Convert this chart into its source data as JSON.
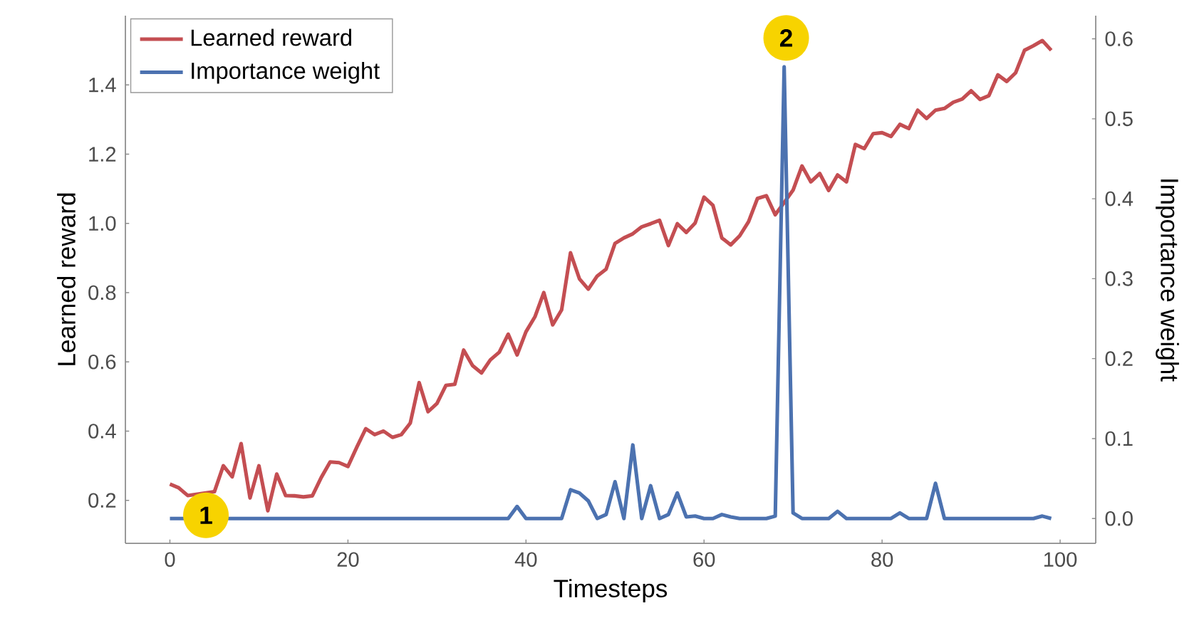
{
  "chart_data": {
    "type": "line",
    "xlabel": "Timesteps",
    "ylabel": "Learned reward",
    "y2label": "Importance weight",
    "x": [
      0,
      1,
      2,
      3,
      4,
      5,
      6,
      7,
      8,
      9,
      10,
      11,
      12,
      13,
      14,
      15,
      16,
      17,
      18,
      19,
      20,
      21,
      22,
      23,
      24,
      25,
      26,
      27,
      28,
      29,
      30,
      31,
      32,
      33,
      34,
      35,
      36,
      37,
      38,
      39,
      40,
      41,
      42,
      43,
      44,
      45,
      46,
      47,
      48,
      49,
      50,
      51,
      52,
      53,
      54,
      55,
      56,
      57,
      58,
      59,
      60,
      61,
      62,
      63,
      64,
      65,
      66,
      67,
      68,
      69,
      70,
      71,
      72,
      73,
      74,
      75,
      76,
      77,
      78,
      79,
      80,
      81,
      82,
      83,
      84,
      85,
      86,
      87,
      88,
      89,
      90,
      91,
      92,
      93,
      94,
      95,
      96,
      97,
      98,
      99
    ],
    "series": [
      {
        "name": "Learned reward",
        "color": "#c44e52",
        "values": [
          0.247,
          0.236,
          0.214,
          null,
          null,
          0.225,
          0.3,
          0.268,
          0.364,
          0.207,
          0.3,
          0.17,
          0.276,
          0.214,
          0.213,
          0.21,
          0.213,
          0.266,
          0.311,
          0.309,
          0.298,
          0.354,
          0.407,
          0.39,
          0.4,
          0.382,
          0.39,
          0.423,
          0.54,
          0.456,
          0.48,
          0.532,
          0.535,
          0.634,
          0.589,
          0.568,
          0.606,
          0.628,
          0.68,
          0.62,
          0.687,
          0.73,
          0.8,
          0.707,
          0.75,
          0.915,
          0.84,
          0.81,
          0.848,
          0.868,
          0.942,
          0.958,
          0.97,
          0.99,
          0.999,
          1.009,
          0.936,
          0.999,
          0.974,
          1.001,
          1.076,
          1.052,
          0.958,
          0.938,
          0.964,
          1.005,
          1.072,
          1.08,
          1.025,
          1.06,
          1.096,
          1.166,
          1.12,
          1.144,
          1.095,
          1.14,
          1.12,
          1.228,
          1.216,
          1.259,
          1.262,
          1.251,
          1.286,
          1.274,
          1.327,
          1.303,
          1.327,
          1.332,
          1.35,
          1.359,
          1.383,
          1.358,
          1.369,
          1.429,
          1.41,
          1.435,
          1.5,
          1.513,
          1.528,
          1.5
        ]
      },
      {
        "name": "Importance weight",
        "color": "#4c72b0",
        "axis": "y2",
        "values": [
          0,
          0,
          null,
          null,
          null,
          null,
          null,
          0,
          0,
          0,
          0,
          0,
          0,
          0,
          0,
          0,
          0,
          0,
          0,
          0,
          0,
          0,
          0,
          0,
          0,
          0,
          0,
          0,
          0,
          0,
          0,
          0,
          0,
          0,
          0,
          0,
          0,
          0,
          0,
          0.015,
          0,
          0,
          0,
          0,
          0,
          0.036,
          0.032,
          0.022,
          0,
          0.005,
          0.046,
          0,
          0.092,
          0,
          0.041,
          0,
          0.005,
          0.032,
          0.002,
          0.003,
          0,
          0,
          0.005,
          0.002,
          0,
          0,
          0,
          0,
          0.003,
          0.565,
          0.007,
          0,
          0,
          0,
          0,
          0.009,
          0,
          0,
          0,
          0,
          0,
          0,
          0.007,
          0,
          0,
          0,
          0.044,
          0,
          0,
          0,
          0,
          0,
          0,
          0,
          0,
          0,
          0,
          0,
          0.003,
          0
        ]
      }
    ],
    "xlim": [
      -5,
      104
    ],
    "xticks": [
      0,
      20,
      40,
      60,
      80,
      100
    ],
    "ylim": [
      0.076,
      1.6
    ],
    "yticks": [
      0.2,
      0.4,
      0.6,
      0.8,
      {
        "value": 1,
        "label": "1.0"
      },
      1.2,
      1.4
    ],
    "y2lim": [
      -0.031,
      0.629
    ],
    "y2ticks": [
      {
        "value": 0,
        "label": "0.0"
      },
      0.1,
      0.2,
      0.3,
      0.4,
      0.5,
      0.6
    ],
    "annotations": [
      "1",
      "2"
    ],
    "legend": "top left",
    "grid": false,
    "marker": "none",
    "line_style": "solid"
  }
}
